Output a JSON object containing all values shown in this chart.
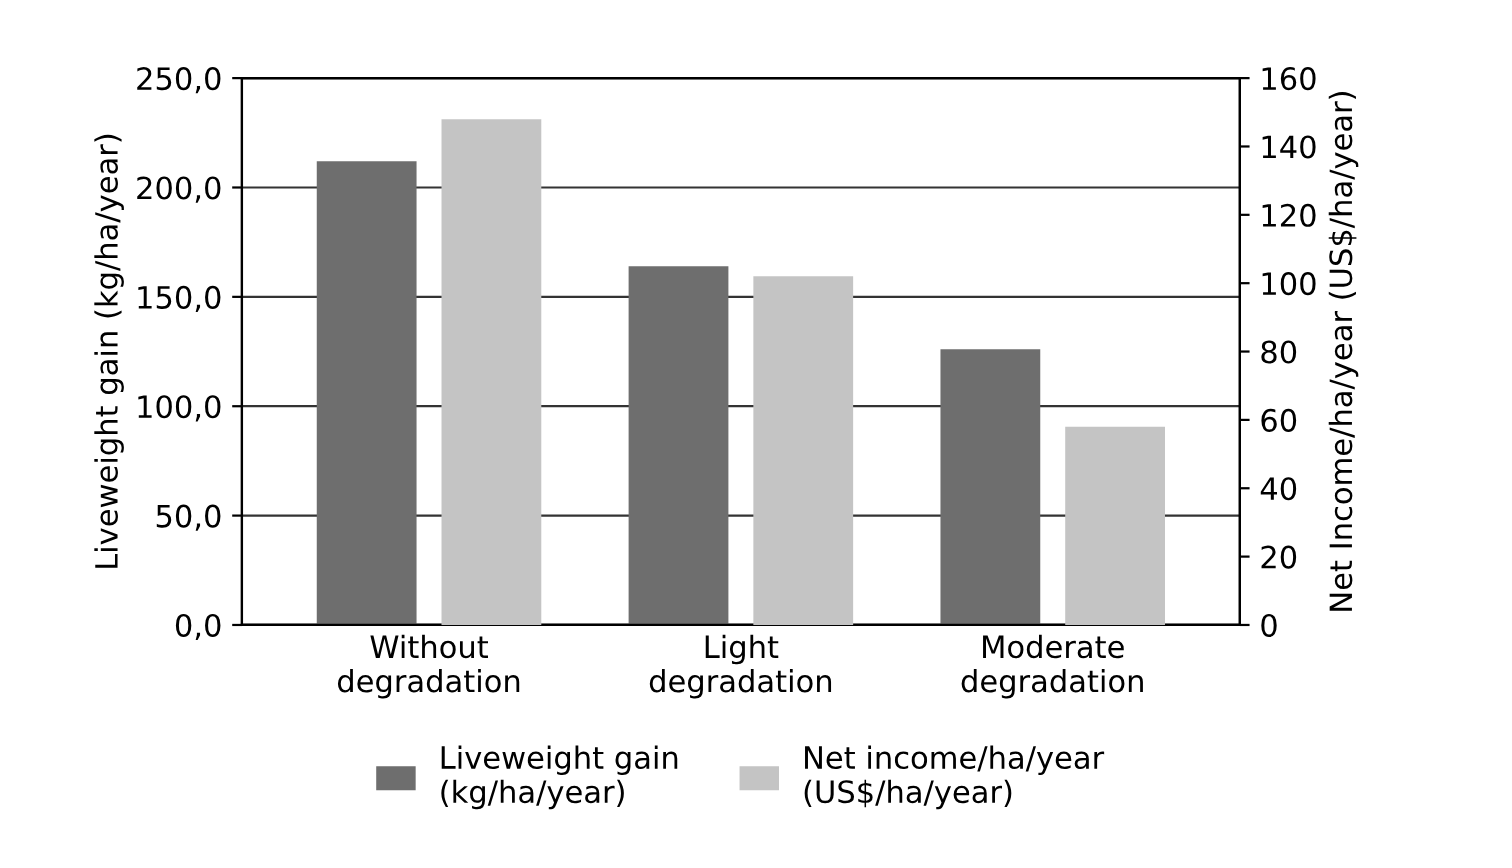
{
  "chart_data": {
    "type": "bar",
    "categories": [
      "Without\ndegradation",
      "Light\ndegradation",
      "Moderate\ndegradation"
    ],
    "ylabel": "Liveweight gain (kg/ha/year)",
    "y2label": "Net Income/ha/year (US$/ha/year)",
    "series": [
      {
        "name": "Liveweight gain\n(kg/ha/year)",
        "color": "#6e6e6e",
        "values": [
          212,
          164,
          126
        ]
      },
      {
        "name": "Net income/ha/year\n(US$/ha/year)",
        "color": "#c4c4c4",
        "values": [
          148,
          102,
          58
        ],
        "axis": "y2"
      }
    ],
    "ylim": [
      0,
      250
    ],
    "yticks": [
      {
        "value": 0,
        "label": "0,0"
      },
      {
        "value": 50,
        "label": "50,0"
      },
      {
        "value": 100,
        "label": "100,0"
      },
      {
        "value": 150,
        "label": "150,0"
      },
      {
        "value": 200,
        "label": "200,0"
      },
      {
        "value": 250,
        "label": "250,0"
      }
    ],
    "y2lim": [
      0,
      160
    ],
    "y2ticks": [
      0,
      20,
      40,
      60,
      80,
      100,
      120,
      140,
      160
    ],
    "grid": "y",
    "legend": "bottom"
  }
}
